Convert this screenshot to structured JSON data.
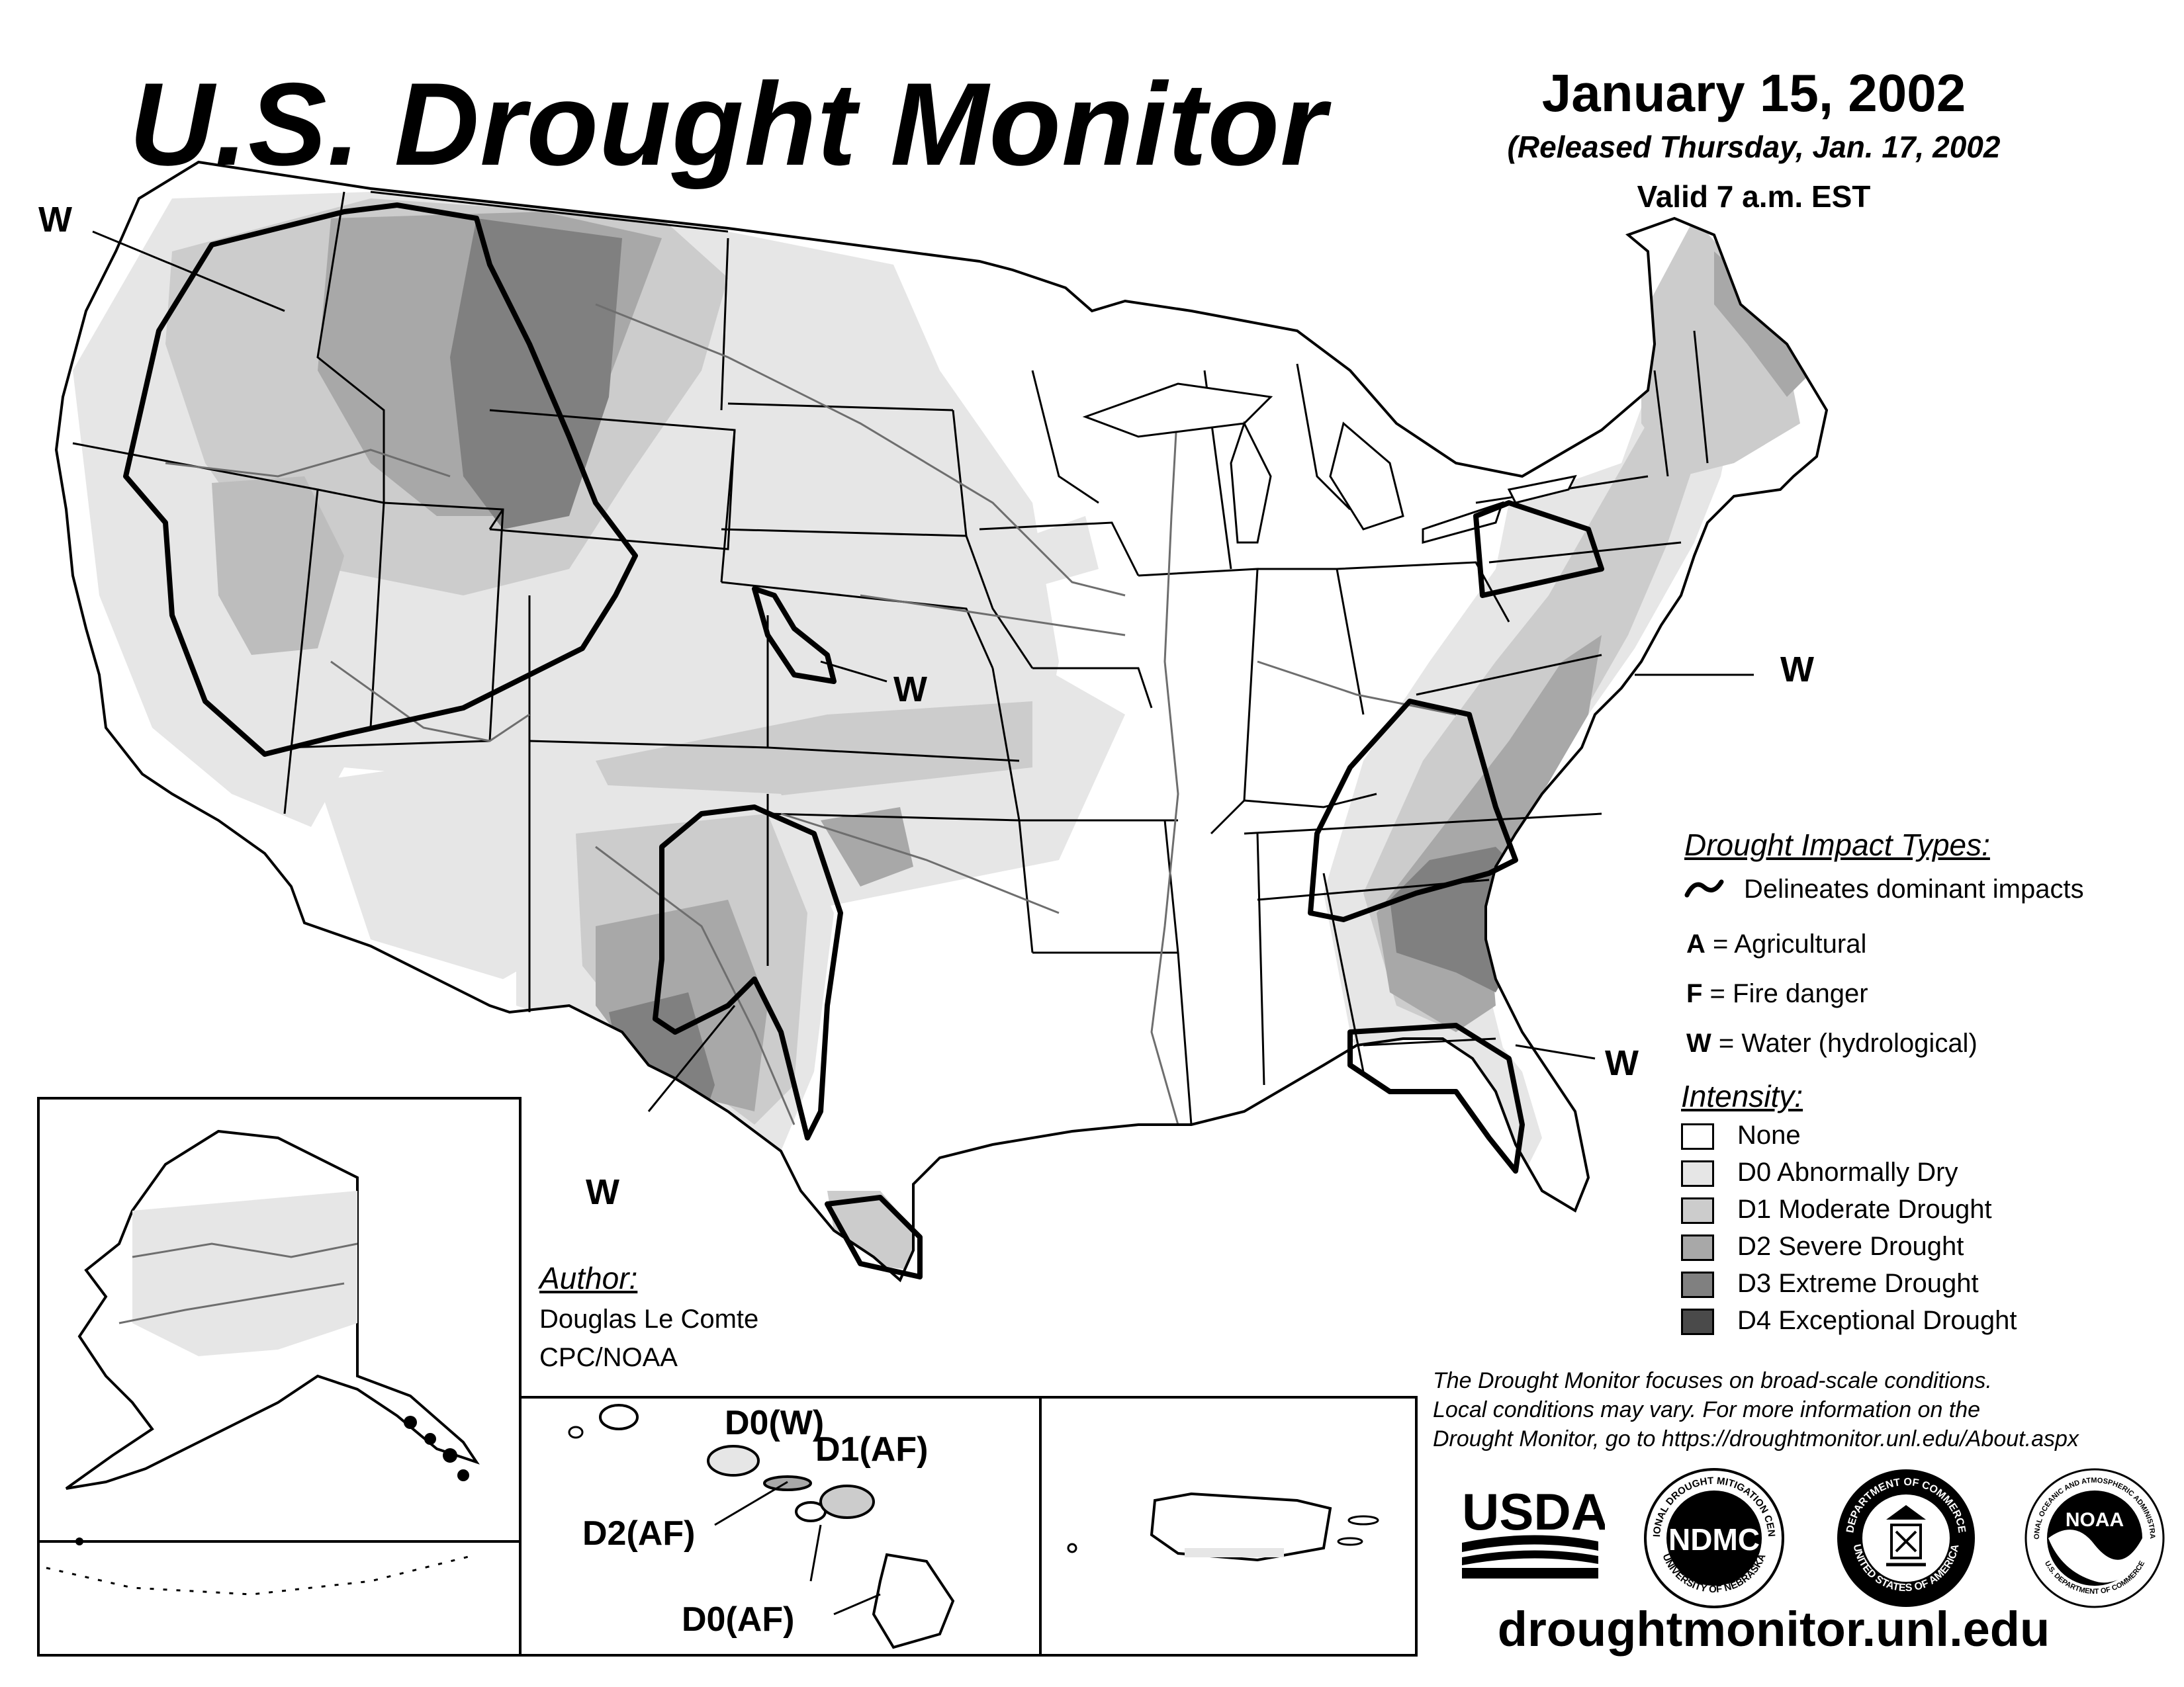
{
  "header": {
    "title": "U.S. Drought Monitor",
    "date": "January 15, 2002",
    "released": "(Released Thursday, Jan. 17, 2002",
    "valid": "Valid 7 a.m. EST"
  },
  "map_labels": {
    "impact_labels": [
      "W",
      "W",
      "W",
      "W",
      "W"
    ],
    "hawaii_labels": [
      "D0(W)",
      "D1(AF)",
      "D2(AF)",
      "D0(AF)"
    ]
  },
  "impact_legend": {
    "heading": "Drought Impact Types:",
    "delineates": "Delineates dominant impacts",
    "types": [
      {
        "code": "A",
        "sep": " = ",
        "label": "Agricultural"
      },
      {
        "code": "F",
        "sep": " = ",
        "label": "Fire danger"
      },
      {
        "code": "W",
        "sep": " = ",
        "label": "Water (hydrological)"
      }
    ]
  },
  "intensity_legend": {
    "heading": "Intensity:",
    "items": [
      {
        "label": "None",
        "color": "#ffffff"
      },
      {
        "label": "D0 Abnormally Dry",
        "color": "#e6e6e6"
      },
      {
        "label": "D1 Moderate Drought",
        "color": "#cccccc"
      },
      {
        "label": "D2 Severe Drought",
        "color": "#a8a8a8"
      },
      {
        "label": "D3 Extreme Drought",
        "color": "#808080"
      },
      {
        "label": "D4 Exceptional Drought",
        "color": "#4a4a4a"
      }
    ]
  },
  "author": {
    "label": "Author:",
    "name": "Douglas Le Comte",
    "org": "CPC/NOAA"
  },
  "note": {
    "lines": [
      "The Drought Monitor focuses on broad-scale conditions.",
      "Local conditions may vary. For more information on the",
      "Drought Monitor, go to https://droughtmonitor.unl.edu/About.aspx"
    ]
  },
  "logos": {
    "usda": "USDA",
    "ndmc": "NDMC",
    "ndmc_ring_top": "NATIONAL DROUGHT MITIGATION CENTER",
    "ndmc_ring_bottom": "UNIVERSITY OF NEBRASKA",
    "doc_ring_top": "DEPARTMENT OF COMMERCE",
    "doc_ring_bottom": "UNITED STATES OF AMERICA",
    "noaa": "NOAA",
    "noaa_ring_top": "NATIONAL OCEANIC AND ATMOSPHERIC ADMINISTRATION",
    "noaa_ring_bottom": "U.S. DEPARTMENT OF COMMERCE"
  },
  "website": "droughtmonitor.unl.edu"
}
